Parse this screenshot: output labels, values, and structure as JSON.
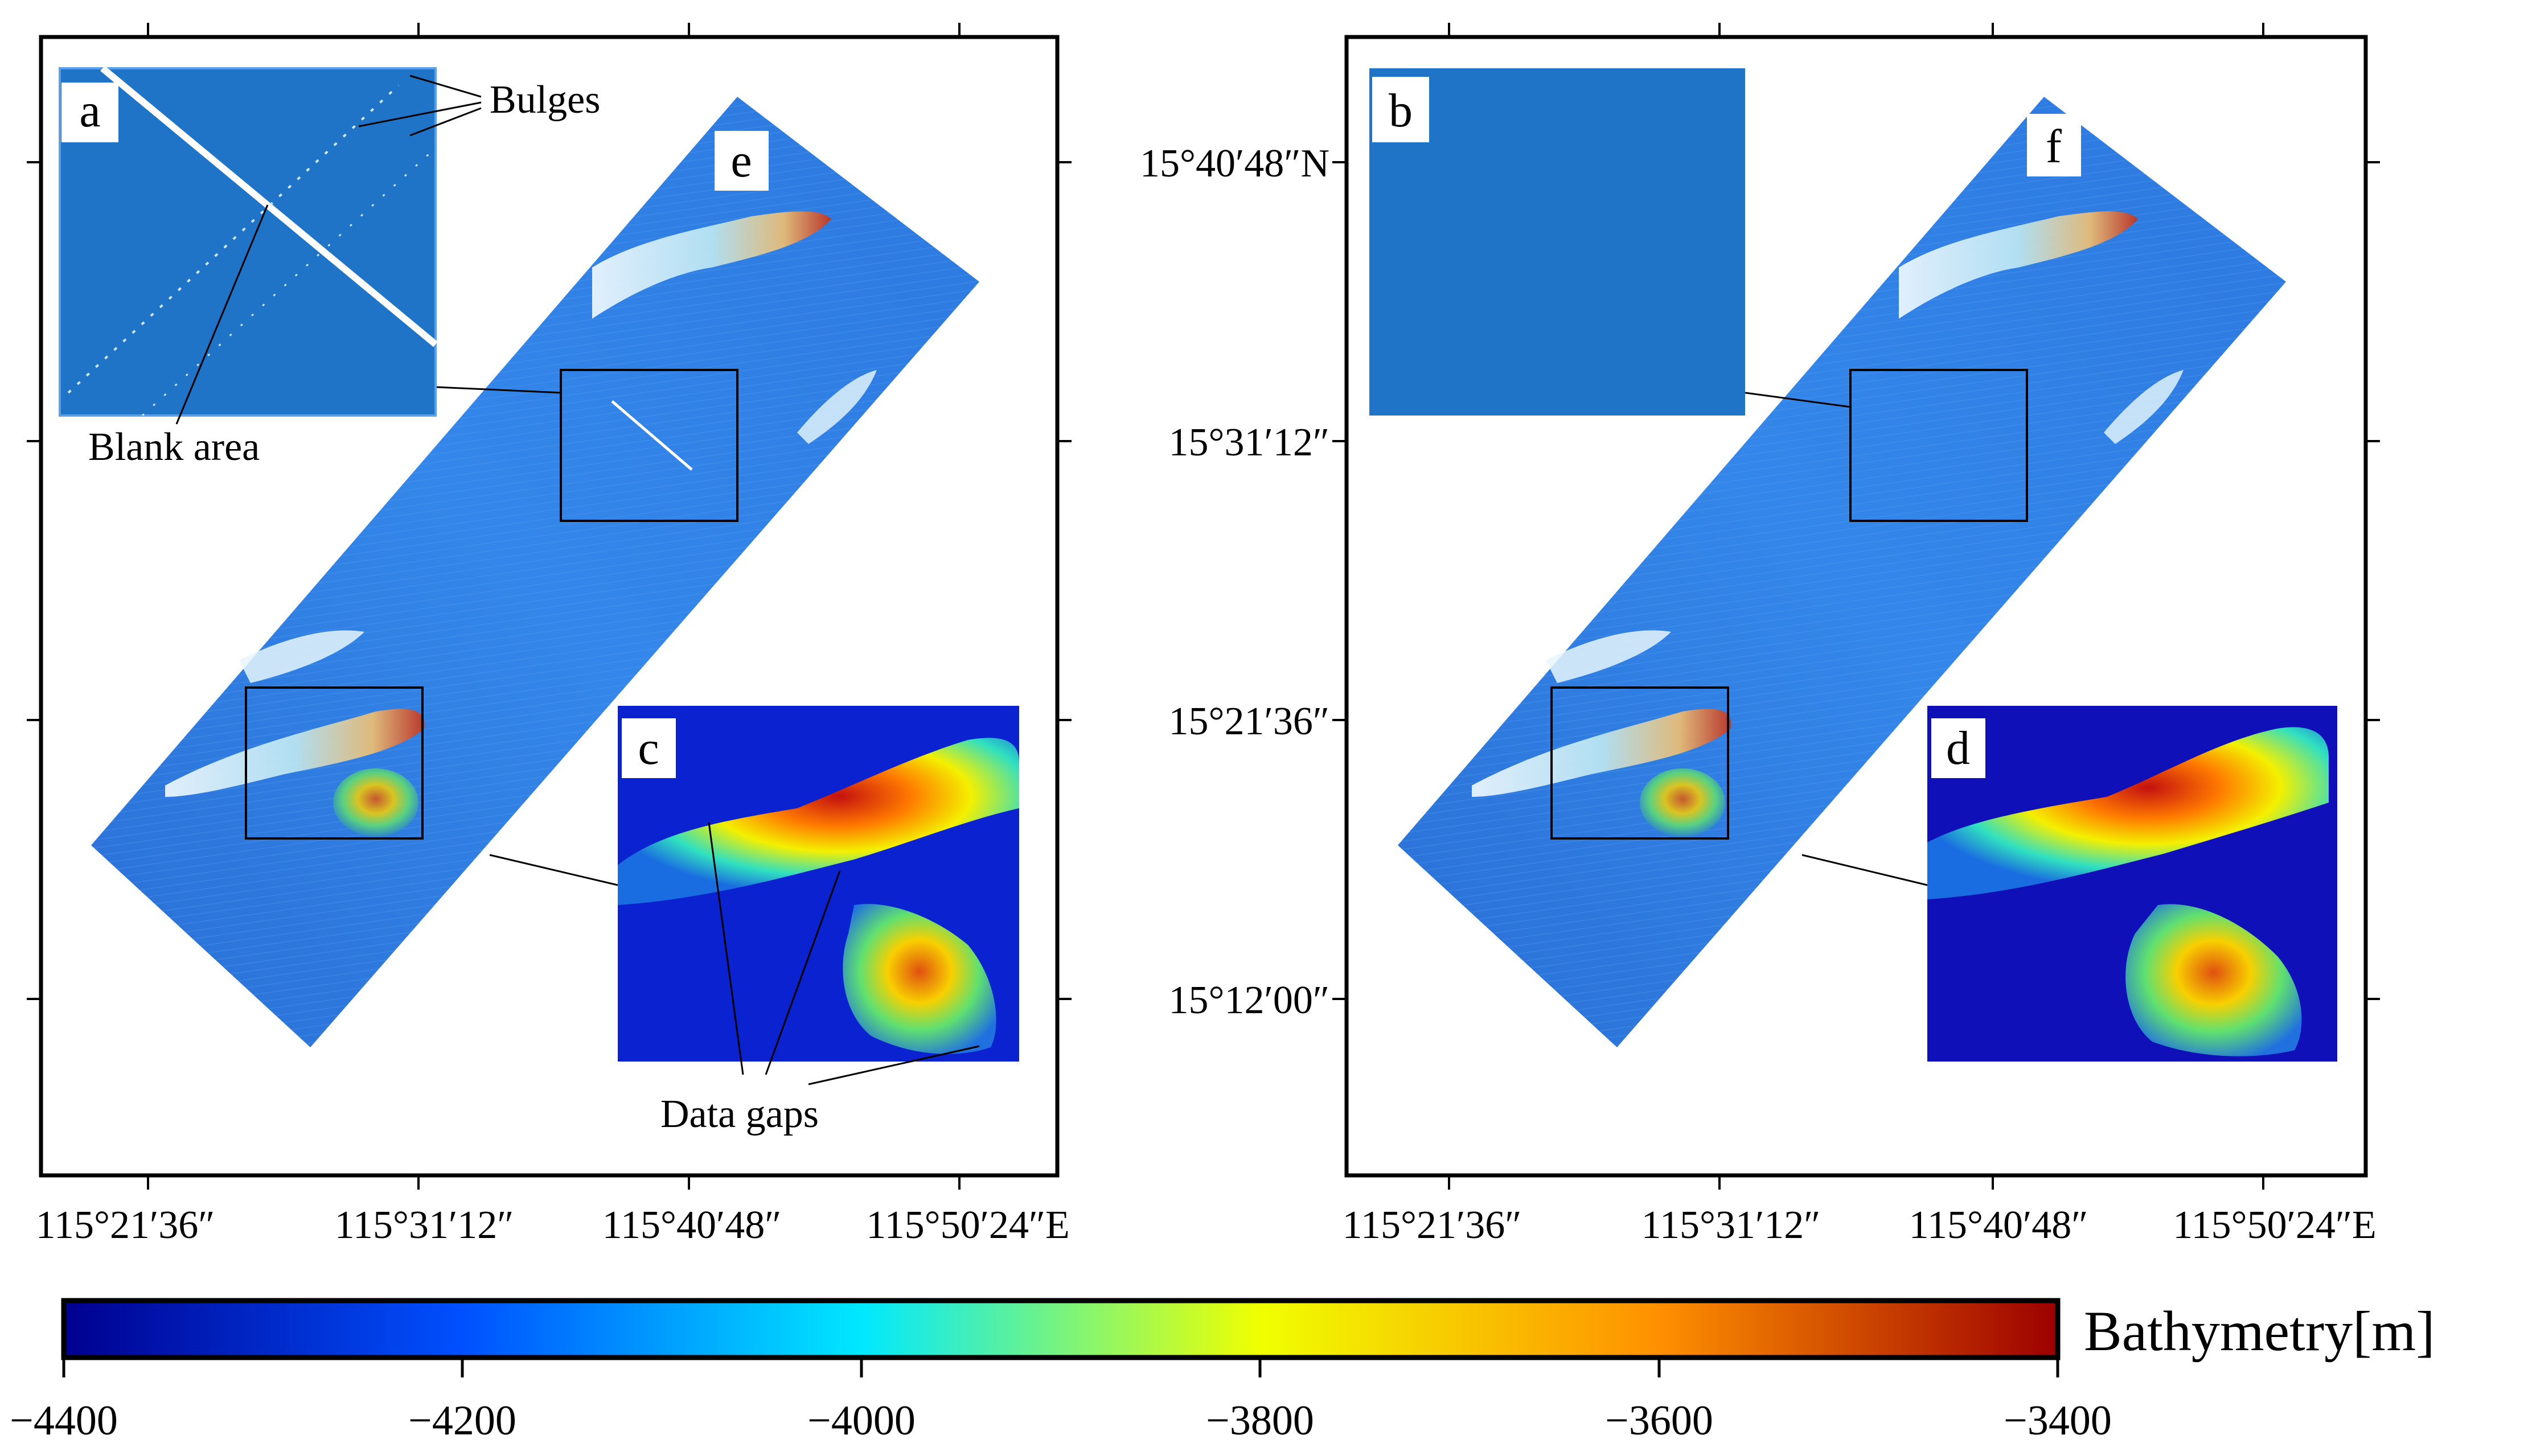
{
  "colors": {
    "frame": "#000000",
    "background": "#ffffff",
    "deep": "#0a10b0",
    "mid": "#1f6fd8",
    "swath": "#2c7be5",
    "ridge_high": "#d21010"
  },
  "panels": [
    {
      "id": "left",
      "x_ticks": [
        "115°21′36″",
        "115°31′12″",
        "115°40′48″",
        "115°50′24″E"
      ],
      "letters": {
        "main": "e",
        "top_inset": "a",
        "bottom_inset": "c"
      },
      "annotations": {
        "bulges": "Bulges",
        "blank": "Blank area",
        "gaps": "Data gaps"
      }
    },
    {
      "id": "right",
      "x_ticks": [
        "115°21′36″",
        "115°31′12″",
        "115°40′48″",
        "115°50′24″E"
      ],
      "letters": {
        "main": "f",
        "top_inset": "b",
        "bottom_inset": "d"
      }
    }
  ],
  "y_ticks": [
    "15°40′48″N",
    "15°31′12″",
    "15°21′36″",
    "15°12′00″"
  ],
  "colorbar": {
    "title": "Bathymetry[m]",
    "ticks": [
      "−4400",
      "−4200",
      "−4000",
      "−3800",
      "−3600",
      "−3400"
    ],
    "stops": [
      "#00008f",
      "#0050ff",
      "#00e8ff",
      "#f0ff00",
      "#ff9000",
      "#9c0000"
    ]
  }
}
